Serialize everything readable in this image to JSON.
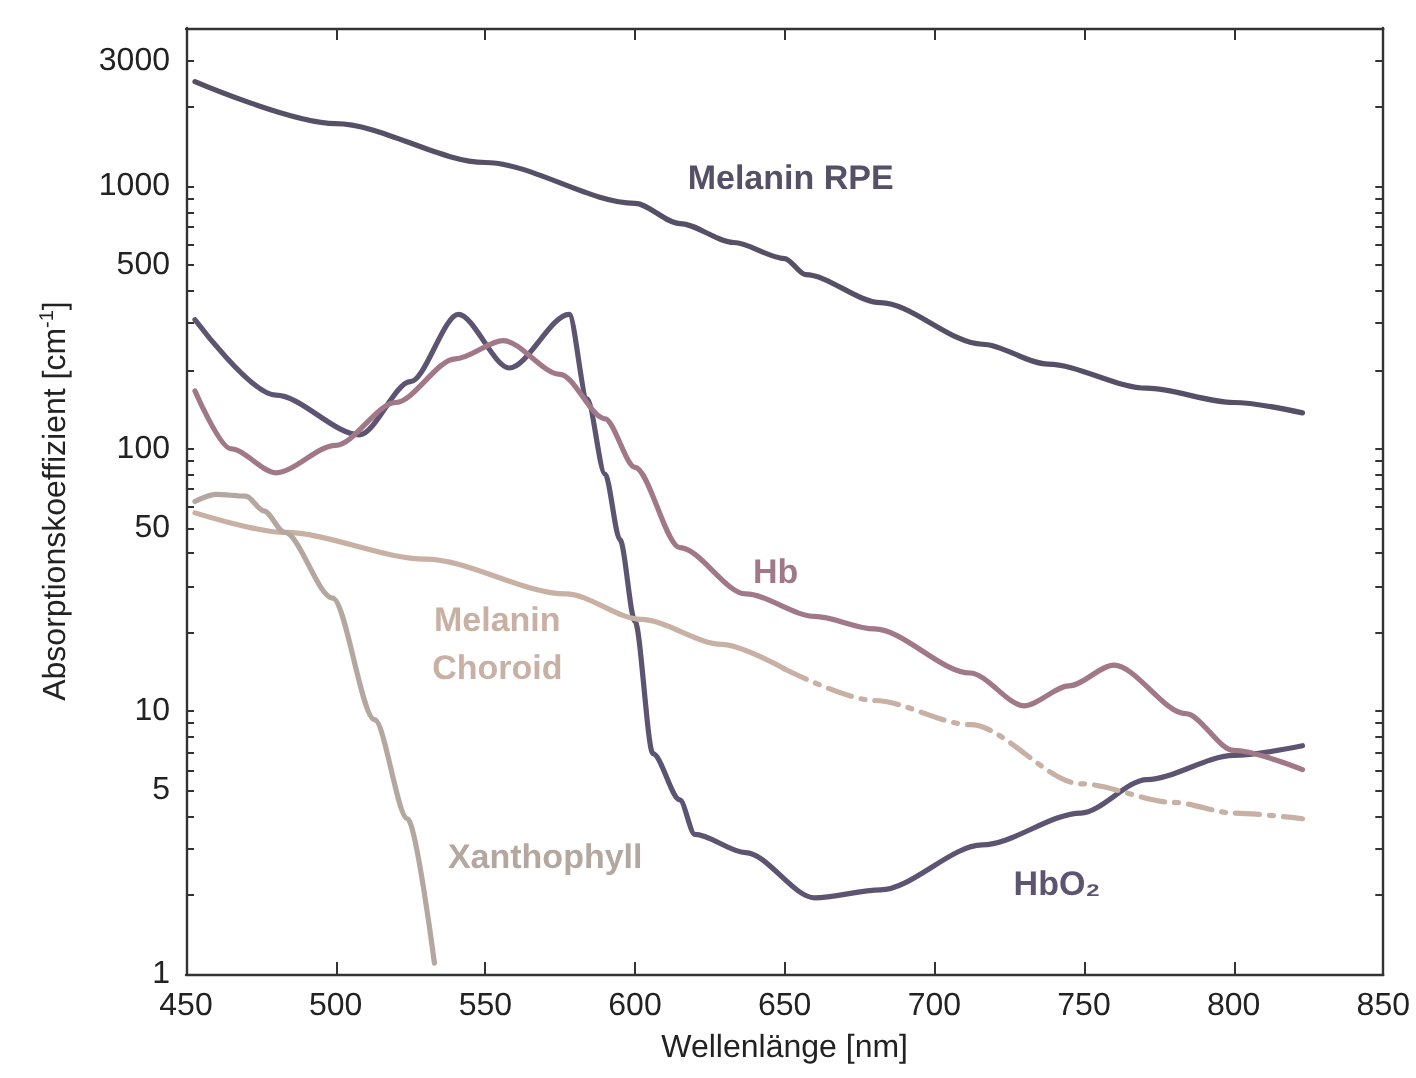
{
  "chart_data": {
    "type": "line",
    "xlabel": "Wellenlänge [nm]",
    "ylabel": "Absorptionskoeffizient [cm$^{-1}$]",
    "xlim": [
      450,
      850
    ],
    "xticks": [
      450,
      500,
      550,
      600,
      650,
      700,
      750,
      800,
      850
    ],
    "ylim": [
      1,
      4000
    ],
    "log": "y",
    "grid": false,
    "legend": false,
    "marker": "none",
    "yticks": [
      1,
      {
        "value": 2,
        "label": null
      },
      {
        "value": 3,
        "label": null
      },
      {
        "value": 4,
        "label": null
      },
      5,
      {
        "value": 6,
        "label": null
      },
      {
        "value": 7,
        "label": null
      },
      {
        "value": 8,
        "label": null
      },
      {
        "value": 9,
        "label": null
      },
      10,
      {
        "value": 20,
        "label": null
      },
      {
        "value": 30,
        "label": null
      },
      {
        "value": 40,
        "label": null
      },
      50,
      {
        "value": 60,
        "label": null
      },
      {
        "value": 70,
        "label": null
      },
      {
        "value": 80,
        "label": null
      },
      {
        "value": 90,
        "label": null
      },
      100,
      {
        "value": 200,
        "label": null
      },
      {
        "value": 300,
        "label": null
      },
      {
        "value": 400,
        "label": null
      },
      500,
      {
        "value": 600,
        "label": null
      },
      {
        "value": 700,
        "label": null
      },
      {
        "value": 800,
        "label": null
      },
      {
        "value": 900,
        "label": null
      },
      1000,
      {
        "value": 2000,
        "label": null
      },
      3000
    ],
    "series": [
      {
        "name": "Melanin RPE",
        "color": "#555066",
        "line_style": "solid",
        "x": [
          453,
          500,
          550,
          600,
          615,
          633,
          650,
          657,
          682,
          716,
          738,
          771,
          800,
          823
        ],
        "values": [
          2500,
          1730,
          1230,
          860,
          720,
          610,
          530,
          460,
          360,
          250,
          210,
          170,
          150,
          137
        ]
      },
      {
        "name": "HbO₂",
        "color": "#5c5470",
        "line_style": "solid",
        "x": [
          453,
          480,
          508,
          525,
          541,
          558,
          578,
          584,
          590,
          595,
          600,
          606,
          615,
          620,
          637,
          660,
          682,
          716,
          749,
          771,
          800,
          823
        ],
        "values": [
          310,
          160,
          113,
          180,
          325,
          203,
          325,
          155,
          80,
          45,
          22,
          6.9,
          4.6,
          3.4,
          2.9,
          1.95,
          2.09,
          3.1,
          4.1,
          5.5,
          6.8,
          7.4
        ]
      },
      {
        "name": "Hb",
        "color": "#a07888",
        "line_style": "solid",
        "x": [
          453,
          465,
          480,
          500,
          520,
          540,
          556,
          575,
          590,
          600,
          615,
          637,
          660,
          680,
          712,
          730,
          745,
          760,
          784,
          800,
          823
        ],
        "values": [
          166,
          100,
          81,
          103,
          150,
          220,
          258,
          192,
          130,
          85,
          42,
          28,
          23,
          20.6,
          14,
          10.5,
          12.5,
          15,
          9.8,
          7.1,
          6
        ]
      },
      {
        "name": "Melanin Choroid",
        "color": "#c8b0a4",
        "line_style": "solid",
        "x": [
          453,
          483,
          530,
          577,
          602,
          629,
          650
        ],
        "values": [
          57,
          48,
          38,
          28,
          22.4,
          18,
          14.5
        ]
      },
      {
        "color": "#c8b0a4",
        "line_style": "dashed",
        "x": [
          650,
          680,
          712,
          749,
          780,
          800,
          823
        ],
        "values": [
          14.5,
          11,
          8.9,
          5.3,
          4.5,
          4.1,
          3.9
        ]
      },
      {
        "name": "Xanthophyll",
        "color": "#b3a7a0",
        "line_style": "solid",
        "x": [
          453,
          460,
          470,
          476,
          483,
          499,
          513,
          524,
          533
        ],
        "values": [
          63,
          67,
          66,
          58,
          48,
          27,
          9.3,
          3.9,
          1.1
        ]
      }
    ]
  }
}
